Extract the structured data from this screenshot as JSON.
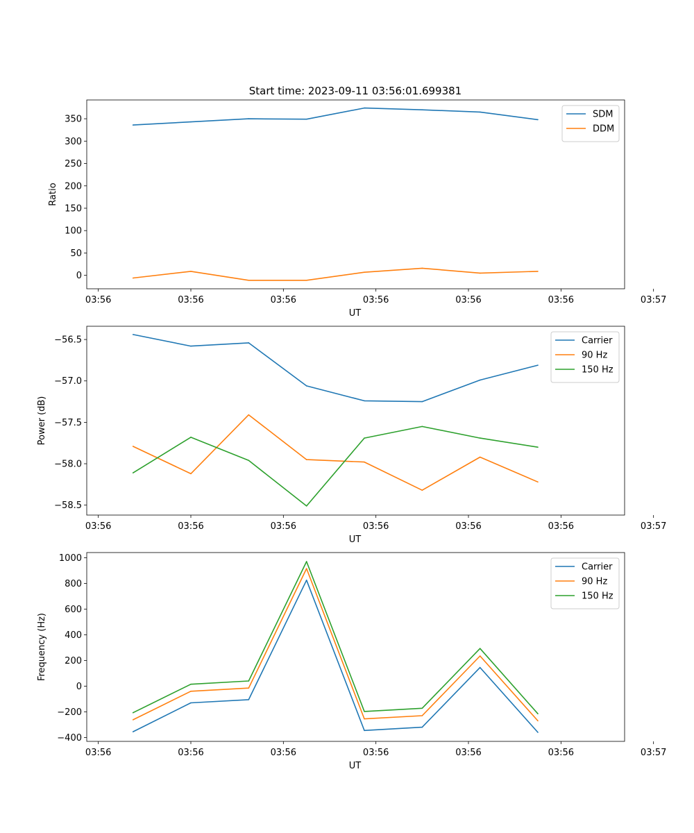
{
  "figure_title": "Start time: 2023-09-11 03:56:01.699381",
  "colors": {
    "c0": "#1f77b4",
    "c1": "#ff7f0e",
    "c2": "#2ca02c"
  },
  "chart_data": [
    {
      "type": "line",
      "title": "Start time: 2023-09-11 03:56:01.699381",
      "xlabel": "UT",
      "ylabel": "Ratio",
      "x": [
        1,
        2,
        3,
        4,
        5,
        6,
        7,
        8
      ],
      "xlim": [
        0.2,
        9.5
      ],
      "xticks": [
        0.4,
        2.0,
        3.6,
        5.2,
        6.8,
        8.4,
        10.0
      ],
      "xtick_labels": [
        "03:56",
        "03:56",
        "03:56",
        "03:56",
        "03:56",
        "03:56",
        "03:57"
      ],
      "ylim": [
        -30,
        392
      ],
      "yticks": [
        0,
        50,
        100,
        150,
        200,
        250,
        300,
        350
      ],
      "ytick_labels": [
        "0",
        "50",
        "100",
        "150",
        "200",
        "250",
        "300",
        "350"
      ],
      "legend_position": "top-right",
      "series": [
        {
          "name": "SDM",
          "color": "#1f77b4",
          "values": [
            336,
            343,
            350,
            349,
            374,
            370,
            365,
            348
          ]
        },
        {
          "name": "DDM",
          "color": "#ff7f0e",
          "values": [
            -6,
            9,
            -11,
            -11,
            7,
            16,
            5,
            9
          ]
        }
      ]
    },
    {
      "type": "line",
      "xlabel": "UT",
      "ylabel": "Power (dB)",
      "x": [
        1,
        2,
        3,
        4,
        5,
        6,
        7,
        8
      ],
      "xlim": [
        0.2,
        9.5
      ],
      "xticks": [
        0.4,
        2.0,
        3.6,
        5.2,
        6.8,
        8.4,
        10.0
      ],
      "xtick_labels": [
        "03:56",
        "03:56",
        "03:56",
        "03:56",
        "03:56",
        "03:56",
        "03:57"
      ],
      "ylim": [
        -58.62,
        -56.34
      ],
      "yticks": [
        -56.5,
        -57.0,
        -57.5,
        -58.0,
        -58.5
      ],
      "ytick_labels": [
        "−56.5",
        "−57.0",
        "−57.5",
        "−58.0",
        "−58.5"
      ],
      "legend_position": "top-right",
      "series": [
        {
          "name": "Carrier",
          "color": "#1f77b4",
          "values": [
            -56.44,
            -56.58,
            -56.54,
            -57.06,
            -57.24,
            -57.25,
            -56.99,
            -56.81
          ]
        },
        {
          "name": "90 Hz",
          "color": "#ff7f0e",
          "values": [
            -57.79,
            -58.12,
            -57.41,
            -57.95,
            -57.98,
            -58.32,
            -57.92,
            -58.22
          ]
        },
        {
          "name": "150 Hz",
          "color": "#2ca02c",
          "values": [
            -58.11,
            -57.68,
            -57.96,
            -58.51,
            -57.69,
            -57.55,
            -57.69,
            -57.8
          ]
        }
      ]
    },
    {
      "type": "line",
      "xlabel": "UT",
      "ylabel": "Frequency (Hz)",
      "x": [
        1,
        2,
        3,
        4,
        5,
        6,
        7,
        8
      ],
      "xlim": [
        0.2,
        9.5
      ],
      "xticks": [
        0.4,
        2.0,
        3.6,
        5.2,
        6.8,
        8.4,
        10.0
      ],
      "xtick_labels": [
        "03:56",
        "03:56",
        "03:56",
        "03:56",
        "03:56",
        "03:56",
        "03:57"
      ],
      "ylim": [
        -430,
        1040
      ],
      "yticks": [
        -400,
        -200,
        0,
        200,
        400,
        600,
        800,
        1000
      ],
      "ytick_labels": [
        "−400",
        "−200",
        "0",
        "200",
        "400",
        "600",
        "800",
        "1000"
      ],
      "legend_position": "top-right",
      "series": [
        {
          "name": "Carrier",
          "color": "#1f77b4",
          "values": [
            -355,
            -130,
            -105,
            825,
            -345,
            -320,
            145,
            -360
          ]
        },
        {
          "name": "90 Hz",
          "color": "#ff7f0e",
          "values": [
            -262,
            -40,
            -15,
            915,
            -255,
            -230,
            235,
            -270
          ]
        },
        {
          "name": "150 Hz",
          "color": "#2ca02c",
          "values": [
            -207,
            15,
            40,
            970,
            -197,
            -172,
            293,
            -215
          ]
        }
      ]
    }
  ]
}
